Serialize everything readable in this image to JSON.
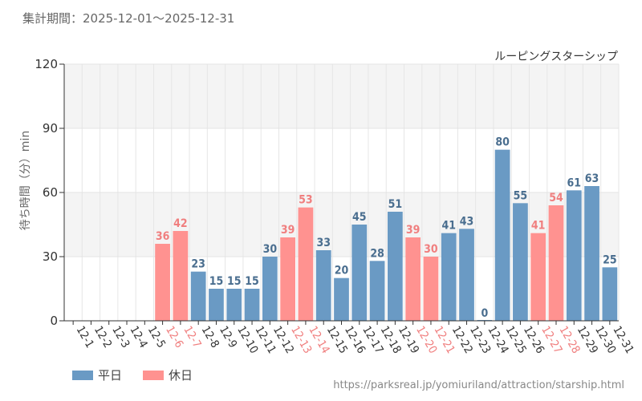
{
  "period_label": "集計期間：2025-12-01～2025-12-31",
  "source_url": "https://parksreal.jp/yomiuriland/attraction/starship.html",
  "legend": {
    "weekday": "平日",
    "holiday": "休日"
  },
  "colors": {
    "weekday": "#6a9ac4",
    "holiday": "#ff9290",
    "weekday_text": "#4a6e8f",
    "holiday_text": "#f07f7f"
  },
  "chart_data": {
    "type": "bar",
    "title": "ルーピングスターシップ",
    "ylabel": "待ち時間（分）min",
    "xlabel": "",
    "ylim": [
      0,
      120
    ],
    "yticks": [
      0,
      30,
      60,
      90,
      120
    ],
    "grid": true,
    "categories": [
      "12-1",
      "12-2",
      "12-3",
      "12-4",
      "12-5",
      "12-6",
      "12-7",
      "12-8",
      "12-9",
      "12-10",
      "12-11",
      "12-12",
      "12-13",
      "12-14",
      "12-15",
      "12-16",
      "12-17",
      "12-18",
      "12-19",
      "12-20",
      "12-21",
      "12-22",
      "12-23",
      "12-24",
      "12-25",
      "12-26",
      "12-27",
      "12-28",
      "12-29",
      "12-30",
      "12-31"
    ],
    "values": [
      null,
      null,
      null,
      null,
      null,
      36,
      42,
      23,
      15,
      15,
      15,
      30,
      39,
      53,
      33,
      20,
      45,
      28,
      51,
      39,
      30,
      41,
      43,
      0,
      80,
      55,
      41,
      54,
      61,
      63,
      25
    ],
    "day_type": [
      "weekday",
      "weekday",
      "weekday",
      "weekday",
      "weekday",
      "holiday",
      "holiday",
      "weekday",
      "weekday",
      "weekday",
      "weekday",
      "weekday",
      "holiday",
      "holiday",
      "weekday",
      "weekday",
      "weekday",
      "weekday",
      "weekday",
      "holiday",
      "holiday",
      "weekday",
      "weekday",
      "weekday",
      "weekday",
      "weekday",
      "holiday",
      "holiday",
      "weekday",
      "weekday",
      "weekday"
    ]
  }
}
